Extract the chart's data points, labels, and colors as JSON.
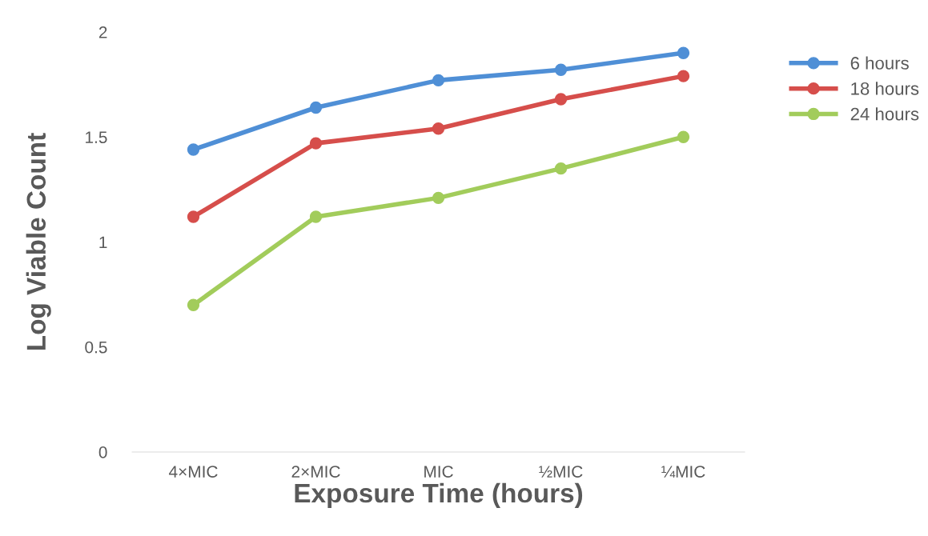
{
  "chart_data": {
    "type": "line",
    "xlabel": "Exposure Time (hours)",
    "ylabel": "Log Viable Count",
    "categories": [
      "4×MIC",
      "2×MIC",
      "MIC",
      "½MIC",
      "¼MIC"
    ],
    "series": [
      {
        "name": "6 hours",
        "color": "#4f8fd6",
        "values": [
          1.44,
          1.64,
          1.77,
          1.82,
          1.9
        ]
      },
      {
        "name": "18 hours",
        "color": "#d64e4b",
        "values": [
          1.12,
          1.47,
          1.54,
          1.68,
          1.79
        ]
      },
      {
        "name": "24 hours",
        "color": "#a2cc5b",
        "values": [
          0.7,
          1.12,
          1.21,
          1.35,
          1.5
        ]
      }
    ],
    "ylim": [
      0,
      2
    ],
    "yticks": [
      0,
      0.5,
      1,
      1.5,
      2
    ],
    "grid": false,
    "legend": "top right",
    "marker": "circle",
    "line_style": "solid"
  }
}
